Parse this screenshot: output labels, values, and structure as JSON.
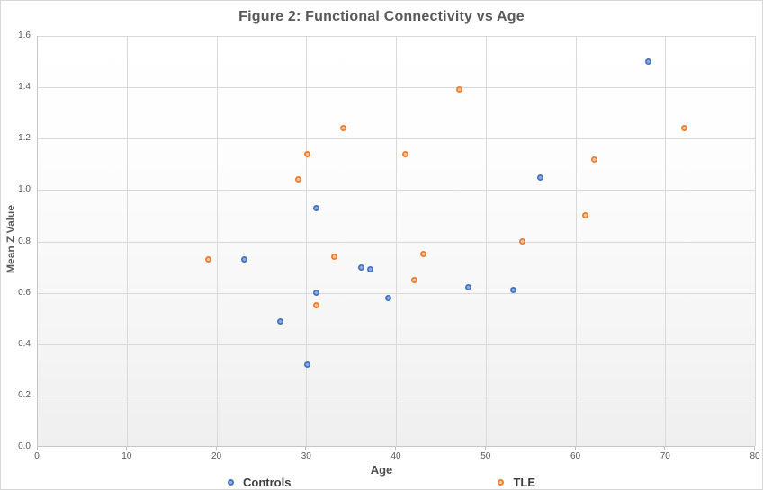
{
  "chart": {
    "title": "Figure 2: Functional Connectivity vs Age",
    "colors": {
      "controls_main": "#4472c4",
      "controls_center": "#8fadde",
      "tle_main": "#ed7d31",
      "tle_center": "#f7c59b",
      "gridline": "#d9d9d9",
      "axis_line": "#c6c6c6",
      "tick_text": "#595959",
      "title_text": "#595959"
    }
  },
  "chart_data": {
    "type": "scatter",
    "title": "Figure 2: Functional Connectivity vs Age",
    "xlabel": "Age",
    "ylabel": "Mean Z Value",
    "xlim": [
      0,
      80
    ],
    "ylim": [
      0,
      1.6
    ],
    "xticks": [
      0,
      10,
      20,
      30,
      40,
      50,
      60,
      70,
      80
    ],
    "yticks": [
      0.0,
      0.2,
      0.4,
      0.6,
      0.8,
      1.0,
      1.2,
      1.4,
      1.6
    ],
    "grid": true,
    "legend_position": "bottom",
    "series": [
      {
        "name": "Controls",
        "color": "#4472c4",
        "marker_center": "#8fadde",
        "points": [
          [
            23,
            0.73
          ],
          [
            27,
            0.49
          ],
          [
            30,
            0.32
          ],
          [
            31,
            0.6
          ],
          [
            31,
            0.93
          ],
          [
            36,
            0.7
          ],
          [
            37,
            0.69
          ],
          [
            39,
            0.58
          ],
          [
            48,
            0.62
          ],
          [
            53,
            0.61
          ],
          [
            56,
            1.05
          ],
          [
            68,
            1.5
          ]
        ]
      },
      {
        "name": "TLE",
        "color": "#ed7d31",
        "marker_center": "#f7c59b",
        "points": [
          [
            19,
            0.73
          ],
          [
            29,
            1.04
          ],
          [
            30,
            1.14
          ],
          [
            31,
            0.55
          ],
          [
            33,
            0.74
          ],
          [
            34,
            1.24
          ],
          [
            41,
            1.14
          ],
          [
            42,
            0.65
          ],
          [
            43,
            0.75
          ],
          [
            47,
            1.39
          ],
          [
            54,
            0.8
          ],
          [
            61,
            0.9
          ],
          [
            62,
            1.12
          ],
          [
            72,
            1.24
          ]
        ]
      }
    ]
  }
}
